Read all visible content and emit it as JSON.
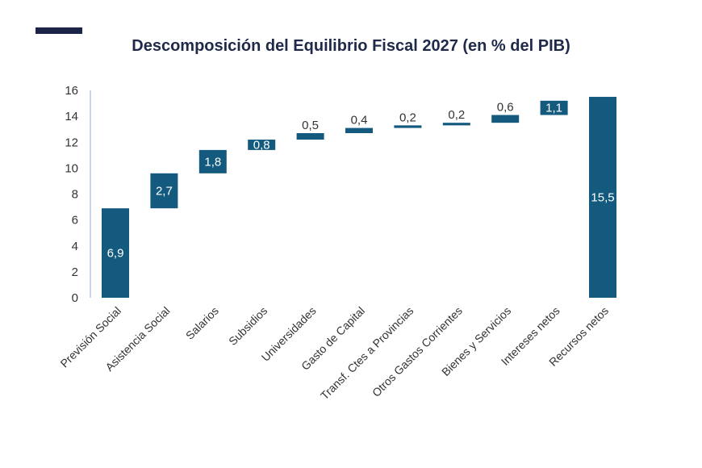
{
  "chart_data": {
    "type": "bar",
    "subtype": "waterfall",
    "title": "Descomposición del Equilibrio Fiscal 2027 (en % del PIB)",
    "xlabel": "",
    "ylabel": "",
    "ylim": [
      0,
      16
    ],
    "yticks": [
      0,
      2,
      4,
      6,
      8,
      10,
      12,
      14,
      16
    ],
    "grid": false,
    "legend": "none",
    "bar_color": "#135a7e",
    "categories": [
      "Previsión Social",
      "Asistencia Social",
      "Salarios",
      "Subsidios",
      "Universidades",
      "Gasto de Capital",
      "Transf. Ctes a Provincias",
      "Otros Gastos Corrientes",
      "Bienes y Servicios",
      "Intereses netos",
      "Recursos netos"
    ],
    "values": [
      6.9,
      2.7,
      1.8,
      0.8,
      0.5,
      0.4,
      0.2,
      0.2,
      0.6,
      1.1,
      15.5
    ],
    "value_labels": [
      "6,9",
      "2,7",
      "1,8",
      "0,8",
      "0,5",
      "0,4",
      "0,2",
      "0,2",
      "0,6",
      "1,1",
      "15,5"
    ],
    "bases": [
      0,
      6.9,
      9.6,
      11.4,
      12.2,
      12.7,
      13.1,
      13.3,
      13.5,
      14.1,
      0
    ]
  }
}
